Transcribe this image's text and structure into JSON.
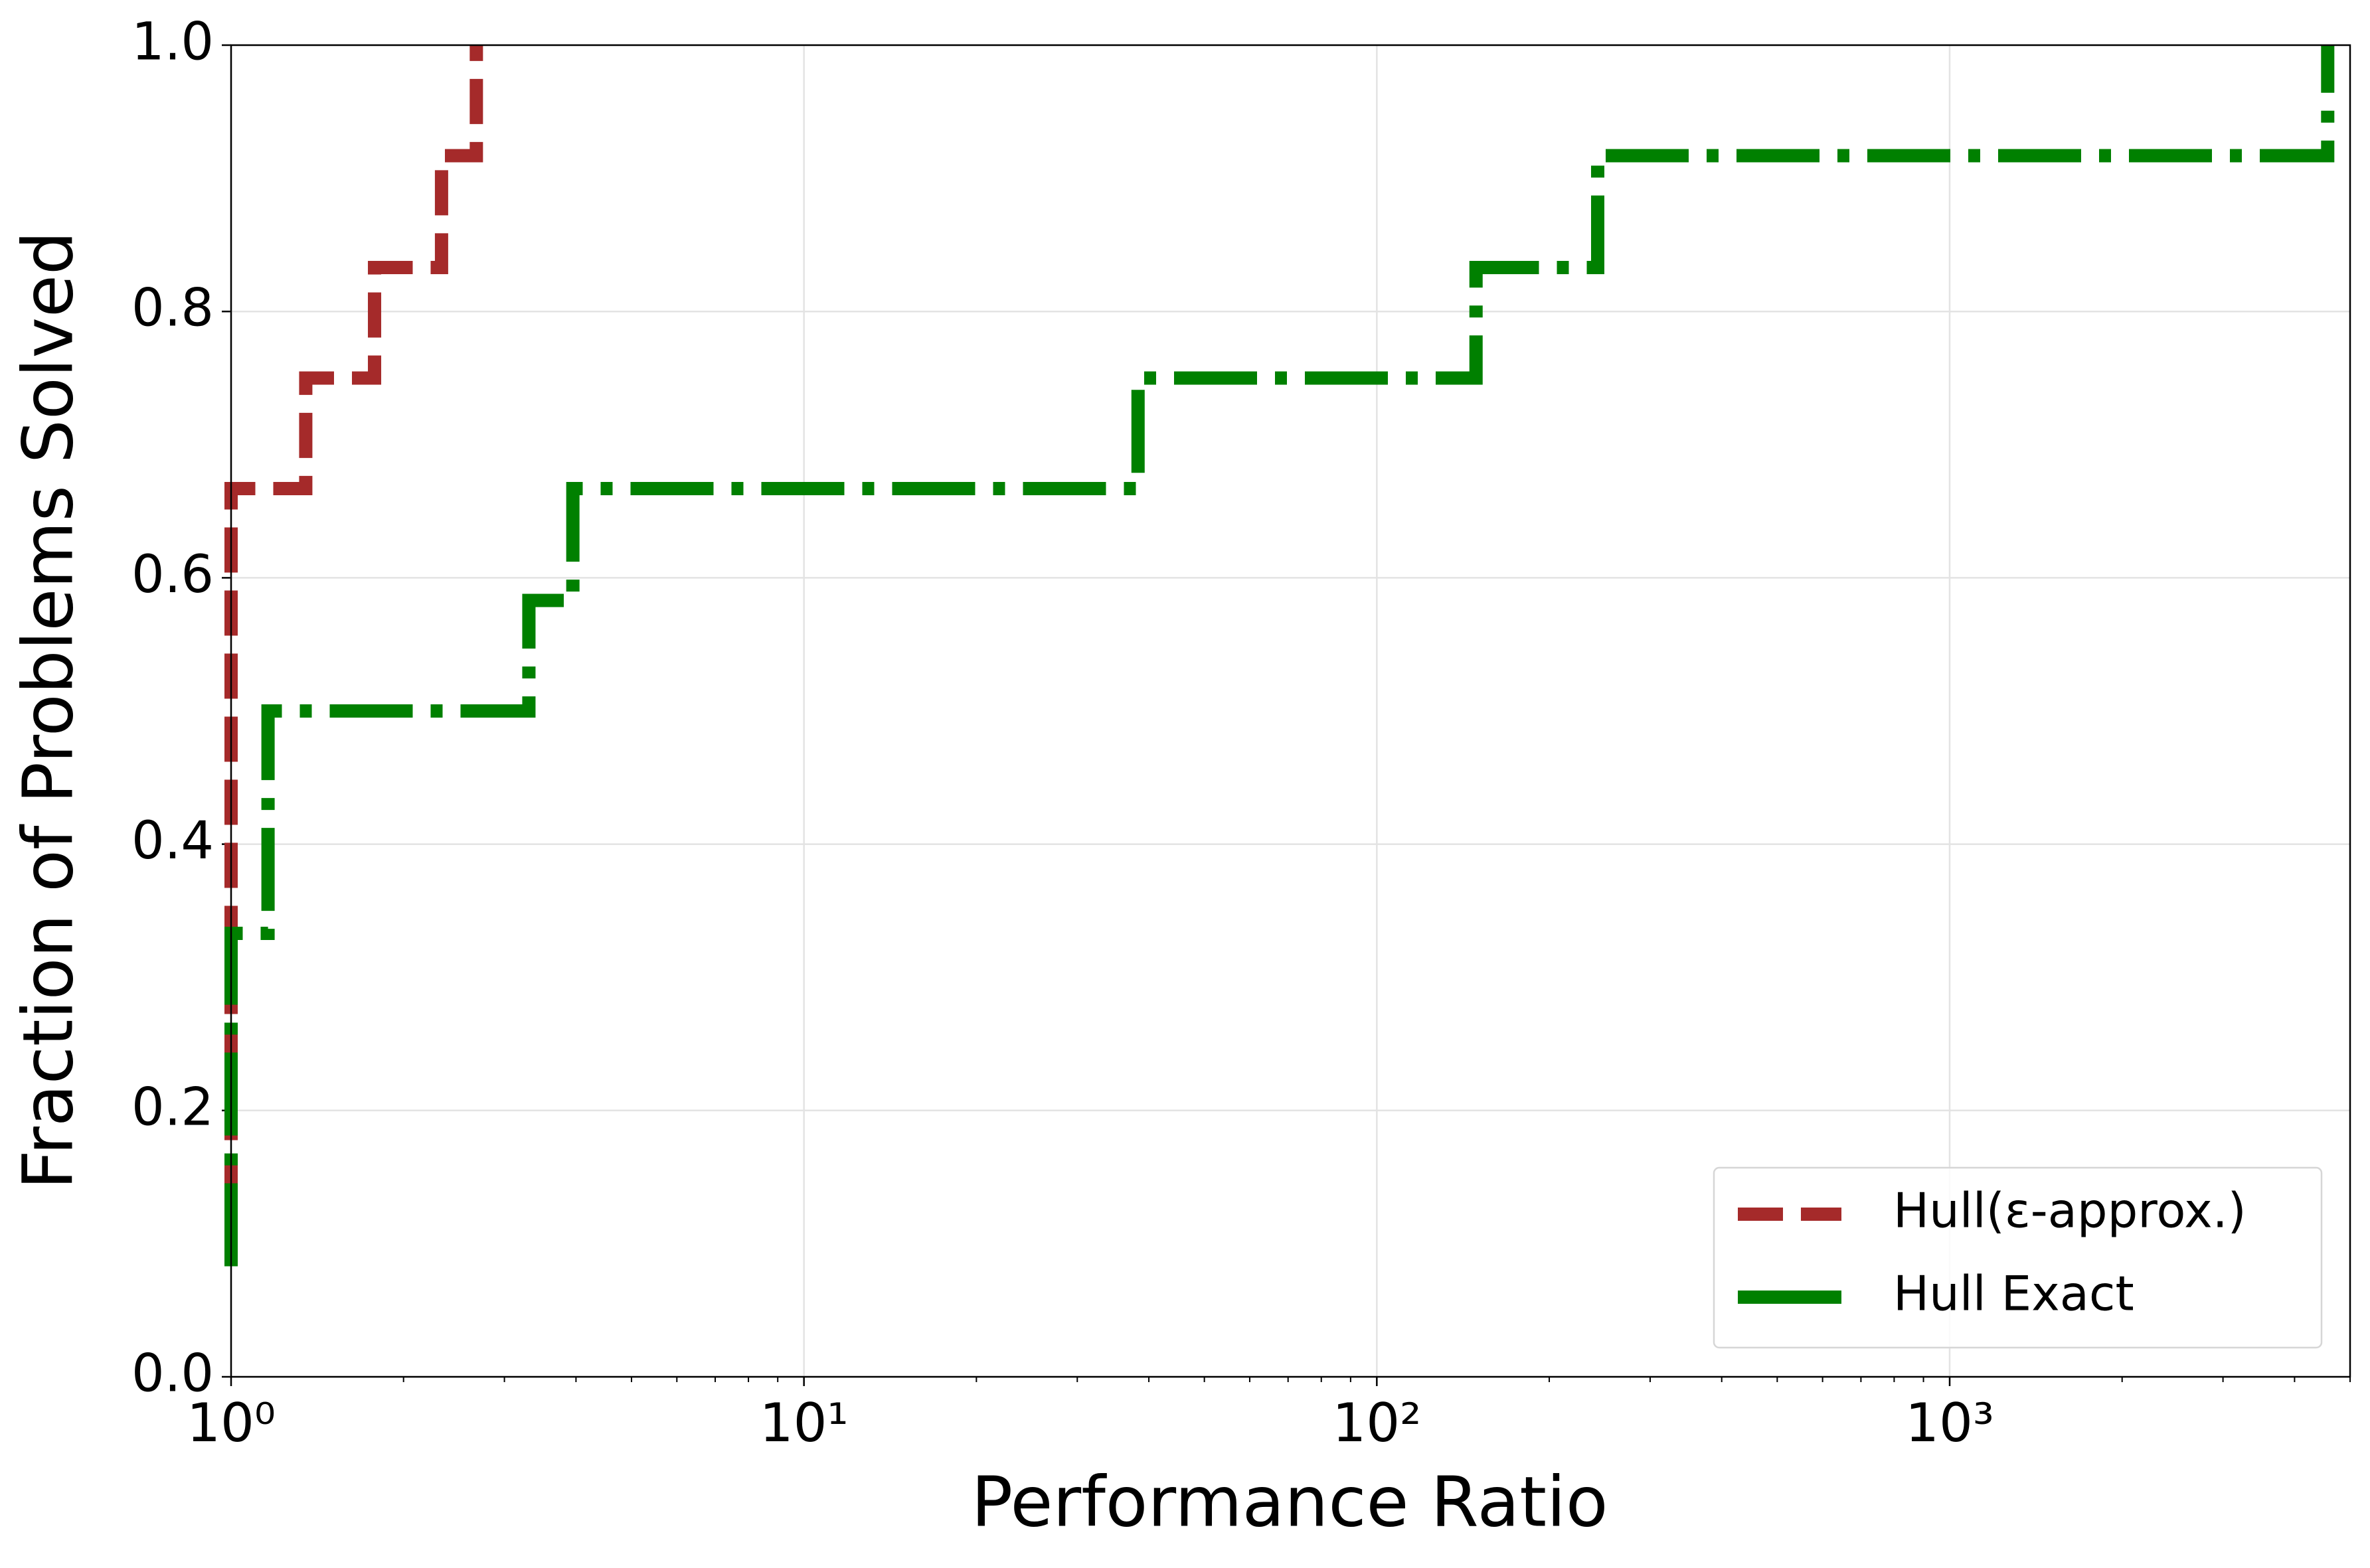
{
  "chart_data": {
    "type": "step",
    "xlabel": "Performance Ratio",
    "ylabel": "Fraction of Problems Solved",
    "xscale": "log",
    "grid": true,
    "legend": "lower right",
    "xlim": [
      1,
      5000
    ],
    "ylim": [
      0,
      1
    ],
    "xticks": [
      {
        "value": 1,
        "label": "10⁰"
      },
      {
        "value": 10,
        "label": "10¹"
      },
      {
        "value": 100,
        "label": "10²"
      },
      {
        "value": 1000,
        "label": "10³"
      }
    ],
    "yticks": [
      {
        "value": 0,
        "label": "0.0"
      },
      0.2,
      0.4,
      0.6,
      0.8,
      {
        "value": 1,
        "label": "1.0"
      }
    ],
    "series": [
      {
        "name": "Hull(ε-approx.)",
        "color": "#a52a2a",
        "dash": "dashed",
        "x": [
          1,
          1,
          1.35,
          1.78,
          2.33,
          2.68
        ],
        "values": [
          0.083,
          0.667,
          0.75,
          0.833,
          0.917,
          1.0
        ]
      },
      {
        "name": "Hull Exact",
        "color": "#008000",
        "dash": "dashdot",
        "x": [
          1,
          1,
          1.16,
          1.16,
          3.31,
          3.95,
          38.3,
          149,
          243,
          4570
        ],
        "values": [
          0.083,
          0.333,
          0.417,
          0.5,
          0.583,
          0.667,
          0.75,
          0.833,
          0.917,
          1.0
        ]
      }
    ]
  }
}
